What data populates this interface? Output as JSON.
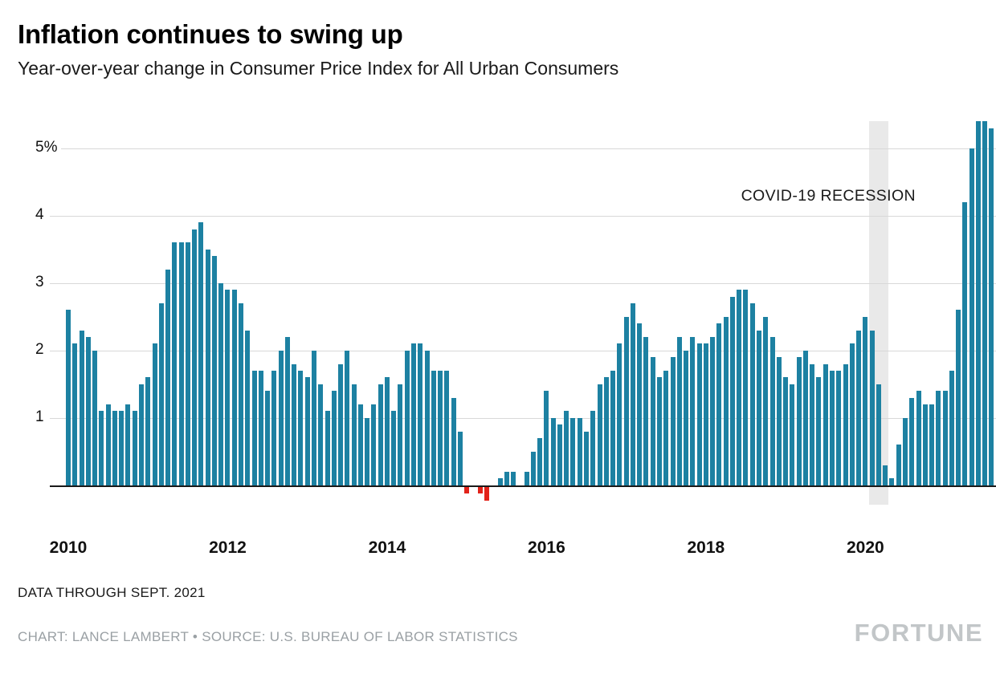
{
  "header": {
    "title": "Inflation continues to swing up",
    "subtitle": "Year-over-year change in Consumer Price Index for All Urban Consumers"
  },
  "footer": {
    "data_note": "DATA THROUGH SEPT. 2021",
    "credits": "CHART: LANCE LAMBERT • SOURCE: U.S. BUREAU OF LABOR STATISTICS",
    "logo": "FORTUNE"
  },
  "chart_data": {
    "type": "bar",
    "title": "Inflation continues to swing up",
    "subtitle": "Year-over-year change in Consumer Price Index for All Urban Consumers",
    "series_name": "CPI-U year-over-year % change",
    "start_year": 2010,
    "start_month": 1,
    "end_label": "Sept. 2021",
    "values": [
      2.6,
      2.1,
      2.3,
      2.2,
      2.0,
      1.1,
      1.2,
      1.1,
      1.1,
      1.2,
      1.1,
      1.5,
      1.6,
      2.1,
      2.7,
      3.2,
      3.6,
      3.6,
      3.6,
      3.8,
      3.9,
      3.5,
      3.4,
      3.0,
      2.9,
      2.9,
      2.7,
      2.3,
      1.7,
      1.7,
      1.4,
      1.7,
      2.0,
      2.2,
      1.8,
      1.7,
      1.6,
      2.0,
      1.5,
      1.1,
      1.4,
      1.8,
      2.0,
      1.5,
      1.2,
      1.0,
      1.2,
      1.5,
      1.6,
      1.1,
      1.5,
      2.0,
      2.1,
      2.1,
      2.0,
      1.7,
      1.7,
      1.7,
      1.3,
      0.8,
      -0.1,
      0.0,
      -0.1,
      -0.2,
      0.0,
      0.1,
      0.2,
      0.2,
      0.0,
      0.2,
      0.5,
      0.7,
      1.4,
      1.0,
      0.9,
      1.1,
      1.0,
      1.0,
      0.8,
      1.1,
      1.5,
      1.6,
      1.7,
      2.1,
      2.5,
      2.7,
      2.4,
      2.2,
      1.9,
      1.6,
      1.7,
      1.9,
      2.2,
      2.0,
      2.2,
      2.1,
      2.1,
      2.2,
      2.4,
      2.5,
      2.8,
      2.9,
      2.9,
      2.7,
      2.3,
      2.5,
      2.2,
      1.9,
      1.6,
      1.5,
      1.9,
      2.0,
      1.8,
      1.6,
      1.8,
      1.7,
      1.7,
      1.8,
      2.1,
      2.3,
      2.5,
      2.3,
      1.5,
      0.3,
      0.1,
      0.6,
      1.0,
      1.3,
      1.4,
      1.2,
      1.2,
      1.4,
      1.4,
      1.7,
      2.6,
      4.2,
      5.0,
      5.4,
      5.4,
      5.3,
      5.4
    ],
    "ylim": [
      -0.5,
      5.5
    ],
    "yticks": [
      1,
      2,
      3,
      4,
      5
    ],
    "ytick_labels": [
      "1",
      "2",
      "3",
      "4",
      "5%"
    ],
    "x_tick_years": [
      2010,
      2012,
      2014,
      2016,
      2018,
      2020
    ],
    "grid": true,
    "positive_color": "#1d81a2",
    "negative_color": "#e2231a",
    "recession_band": {
      "start": "2020-02",
      "end": "2020-04",
      "label": "COVID-19 RECESSION"
    }
  }
}
